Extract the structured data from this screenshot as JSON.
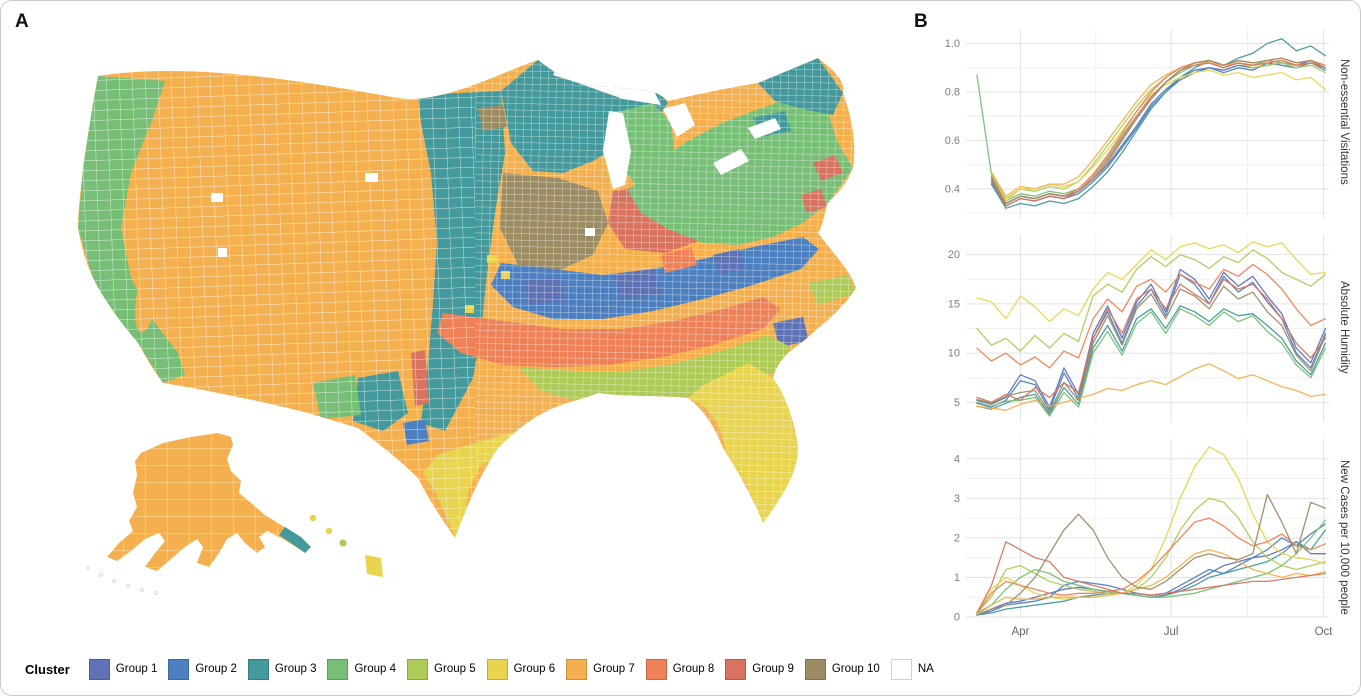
{
  "figure": {
    "panel_a_label": "A",
    "panel_b_label": "B"
  },
  "legend": {
    "title": "Cluster",
    "items": [
      {
        "label": "Group 1",
        "color": "#5e72b5"
      },
      {
        "label": "Group 2",
        "color": "#4c80c0"
      },
      {
        "label": "Group 3",
        "color": "#43999b"
      },
      {
        "label": "Group 4",
        "color": "#77bf77"
      },
      {
        "label": "Group 5",
        "color": "#aeca57"
      },
      {
        "label": "Group 6",
        "color": "#e8d44f"
      },
      {
        "label": "Group 7",
        "color": "#f4b04e"
      },
      {
        "label": "Group 8",
        "color": "#ee8158"
      },
      {
        "label": "Group 9",
        "color": "#d8735f"
      },
      {
        "label": "Group 10",
        "color": "#9c8c64"
      },
      {
        "label": "NA",
        "color": "#ffffff"
      }
    ]
  },
  "chart_data": [
    {
      "type": "line",
      "ylabel": "Non-essential Visitations",
      "ylim": [
        0.28,
        1.06
      ],
      "y_ticks": [
        0.4,
        0.6,
        0.8,
        1.0
      ],
      "x_ticks": [
        {
          "label": "Apr",
          "pos": 0.15
        },
        {
          "label": "Jul",
          "pos": 0.565
        },
        {
          "label": "Oct",
          "pos": 0.985
        }
      ],
      "x_minor": [
        0.3575,
        0.775
      ],
      "x_range": [
        0.03,
        0.99
      ],
      "show_x_labels": false,
      "series": [
        {
          "name": "Group 1",
          "color": "#5e72b5",
          "values": [
            null,
            0.44,
            0.34,
            0.37,
            0.36,
            0.38,
            0.37,
            0.39,
            0.44,
            0.5,
            0.58,
            0.66,
            0.75,
            0.81,
            0.86,
            0.89,
            0.9,
            0.89,
            0.91,
            0.9,
            0.91,
            0.92,
            0.91,
            0.93,
            0.9
          ]
        },
        {
          "name": "Group 2",
          "color": "#4c80c0",
          "values": [
            null,
            0.43,
            0.33,
            0.36,
            0.35,
            0.37,
            0.36,
            0.38,
            0.43,
            0.49,
            0.57,
            0.65,
            0.74,
            0.8,
            0.85,
            0.88,
            0.9,
            0.88,
            0.9,
            0.89,
            0.92,
            0.91,
            0.9,
            0.92,
            0.89
          ]
        },
        {
          "name": "Group 3",
          "color": "#43999b",
          "values": [
            null,
            0.42,
            0.32,
            0.34,
            0.33,
            0.35,
            0.34,
            0.36,
            0.41,
            0.47,
            0.55,
            0.64,
            0.73,
            0.8,
            0.86,
            0.9,
            0.93,
            0.91,
            0.94,
            0.96,
            1.0,
            1.02,
            0.97,
            0.99,
            0.95
          ]
        },
        {
          "name": "Group 4",
          "color": "#77bf77",
          "values": [
            0.87,
            0.46,
            0.35,
            0.38,
            0.37,
            0.39,
            0.38,
            0.4,
            0.46,
            0.53,
            0.62,
            0.7,
            0.78,
            0.84,
            0.88,
            0.91,
            0.92,
            0.9,
            0.92,
            0.91,
            0.93,
            0.92,
            0.91,
            0.92,
            0.9
          ]
        },
        {
          "name": "Group 5",
          "color": "#aeca57",
          "values": [
            null,
            0.46,
            0.36,
            0.4,
            0.39,
            0.41,
            0.4,
            0.43,
            0.5,
            0.58,
            0.66,
            0.74,
            0.81,
            0.86,
            0.9,
            0.92,
            0.93,
            0.91,
            0.92,
            0.9,
            0.91,
            0.92,
            0.9,
            0.91,
            0.88
          ]
        },
        {
          "name": "Group 6",
          "color": "#e8d44f",
          "values": [
            null,
            0.45,
            0.35,
            0.4,
            0.4,
            0.42,
            0.41,
            0.43,
            0.49,
            0.56,
            0.64,
            0.72,
            0.79,
            0.83,
            0.86,
            0.88,
            0.89,
            0.87,
            0.88,
            0.86,
            0.87,
            0.88,
            0.85,
            0.86,
            0.81
          ]
        },
        {
          "name": "Group 7",
          "color": "#f4b04e",
          "values": [
            null,
            0.47,
            0.37,
            0.41,
            0.4,
            0.42,
            0.42,
            0.45,
            0.52,
            0.6,
            0.68,
            0.76,
            0.83,
            0.87,
            0.9,
            0.92,
            0.92,
            0.91,
            0.92,
            0.91,
            0.92,
            0.93,
            0.91,
            0.92,
            0.9
          ]
        },
        {
          "name": "Group 8",
          "color": "#ee8158",
          "values": [
            null,
            0.45,
            0.34,
            0.37,
            0.36,
            0.38,
            0.37,
            0.4,
            0.46,
            0.54,
            0.63,
            0.72,
            0.8,
            0.86,
            0.9,
            0.92,
            0.93,
            0.91,
            0.93,
            0.92,
            0.93,
            0.94,
            0.92,
            0.93,
            0.91
          ]
        },
        {
          "name": "Group 9",
          "color": "#d8735f",
          "values": [
            null,
            0.44,
            0.33,
            0.36,
            0.35,
            0.37,
            0.36,
            0.39,
            0.45,
            0.52,
            0.61,
            0.7,
            0.78,
            0.84,
            0.89,
            0.91,
            0.92,
            0.9,
            0.92,
            0.91,
            0.92,
            0.93,
            0.91,
            0.92,
            0.9
          ]
        },
        {
          "name": "Group 10",
          "color": "#9c8c64",
          "values": [
            null,
            0.45,
            0.34,
            0.37,
            0.36,
            0.38,
            0.37,
            0.39,
            0.44,
            0.51,
            0.6,
            0.69,
            0.77,
            0.84,
            0.89,
            0.92,
            0.93,
            0.91,
            0.93,
            0.92,
            0.93,
            0.94,
            0.92,
            0.93,
            0.9
          ]
        }
      ]
    },
    {
      "type": "line",
      "ylabel": "Absolute Humidity",
      "ylim": [
        3,
        22
      ],
      "y_ticks": [
        5,
        10,
        15,
        20
      ],
      "x_ticks": [
        {
          "label": "Apr",
          "pos": 0.15
        },
        {
          "label": "Jul",
          "pos": 0.565
        },
        {
          "label": "Oct",
          "pos": 0.985
        }
      ],
      "x_minor": [
        0.3575,
        0.775
      ],
      "x_range": [
        0.03,
        0.99
      ],
      "show_x_labels": false,
      "series": [
        {
          "name": "Group 1",
          "color": "#5e72b5",
          "values": [
            5.2,
            4.8,
            5.5,
            7.8,
            7.2,
            4.5,
            8.5,
            5.8,
            12.0,
            14.8,
            11.5,
            15.2,
            17.0,
            14.2,
            18.5,
            17.5,
            15.5,
            18.2,
            16.8,
            17.8,
            15.8,
            14.0,
            10.5,
            9.0,
            12.5
          ]
        },
        {
          "name": "Group 2",
          "color": "#4c80c0",
          "values": [
            4.9,
            4.5,
            5.2,
            7.2,
            6.8,
            4.2,
            8.0,
            5.4,
            11.5,
            14.2,
            11.0,
            14.8,
            16.5,
            13.8,
            18.0,
            17.0,
            15.0,
            17.8,
            16.2,
            17.2,
            15.2,
            13.5,
            10.0,
            8.5,
            12.0
          ]
        },
        {
          "name": "Group 3",
          "color": "#43999b",
          "values": [
            4.6,
            4.3,
            4.9,
            5.5,
            5.8,
            3.8,
            6.5,
            4.8,
            10.5,
            12.8,
            10.2,
            13.5,
            14.5,
            12.5,
            14.8,
            14.2,
            13.2,
            14.5,
            13.8,
            14.0,
            12.8,
            11.5,
            9.2,
            7.8,
            11.0
          ]
        },
        {
          "name": "Group 4",
          "color": "#77bf77",
          "values": [
            5.0,
            4.6,
            5.1,
            5.2,
            5.5,
            3.6,
            6.0,
            4.5,
            10.0,
            12.2,
            9.8,
            13.0,
            14.2,
            12.0,
            14.5,
            13.8,
            12.8,
            14.2,
            13.2,
            13.8,
            12.2,
            11.0,
            8.8,
            7.5,
            10.5
          ]
        },
        {
          "name": "Group 5",
          "color": "#aeca57",
          "values": [
            12.5,
            10.8,
            11.5,
            10.2,
            11.8,
            10.5,
            12.0,
            11.2,
            15.8,
            17.0,
            16.2,
            18.5,
            19.8,
            18.8,
            20.0,
            19.5,
            18.6,
            19.8,
            19.2,
            20.5,
            19.6,
            18.2,
            17.5,
            16.8,
            18.0
          ]
        },
        {
          "name": "Group 6",
          "color": "#e8d44f",
          "values": [
            15.6,
            15.2,
            13.5,
            15.8,
            14.7,
            13.2,
            14.5,
            13.8,
            16.5,
            18.2,
            17.5,
            19.0,
            20.5,
            19.5,
            20.8,
            21.2,
            20.6,
            21.0,
            20.2,
            21.3,
            20.8,
            21.2,
            19.5,
            18.0,
            18.2
          ]
        },
        {
          "name": "Group 7",
          "color": "#f4b04e",
          "values": [
            4.6,
            4.4,
            4.2,
            4.8,
            5.2,
            4.6,
            5.0,
            5.4,
            5.8,
            6.4,
            6.2,
            6.8,
            7.2,
            6.8,
            7.6,
            8.4,
            8.9,
            8.2,
            7.4,
            7.8,
            7.2,
            6.6,
            6.2,
            5.6,
            5.8
          ]
        },
        {
          "name": "Group 8",
          "color": "#ee8158",
          "values": [
            10.5,
            9.2,
            10.0,
            8.8,
            9.6,
            8.5,
            10.2,
            9.5,
            13.5,
            15.5,
            14.2,
            16.8,
            17.5,
            16.2,
            18.0,
            17.2,
            16.5,
            18.5,
            17.8,
            19.0,
            18.0,
            16.5,
            14.5,
            12.8,
            13.5
          ]
        },
        {
          "name": "Group 9",
          "color": "#d8735f",
          "values": [
            5.5,
            5.0,
            5.8,
            5.2,
            6.5,
            5.5,
            7.0,
            6.0,
            11.5,
            14.5,
            12.0,
            15.5,
            16.5,
            14.5,
            17.0,
            16.0,
            15.0,
            17.5,
            16.5,
            17.0,
            15.5,
            13.5,
            11.0,
            9.5,
            11.5
          ]
        },
        {
          "name": "Group 10",
          "color": "#9c8c64",
          "values": [
            5.3,
            4.9,
            5.6,
            6.0,
            6.2,
            4.0,
            7.0,
            5.2,
            11.0,
            13.8,
            10.8,
            14.5,
            16.0,
            13.5,
            16.5,
            15.8,
            14.5,
            16.8,
            15.5,
            16.2,
            14.2,
            12.8,
            9.8,
            8.2,
            11.8
          ]
        }
      ]
    },
    {
      "type": "line",
      "ylabel": "New Cases per 10,000 people",
      "ylim": [
        0,
        4.5
      ],
      "y_ticks": [
        0,
        1,
        2,
        3,
        4
      ],
      "x_ticks": [
        {
          "label": "Apr",
          "pos": 0.15
        },
        {
          "label": "Jul",
          "pos": 0.565
        },
        {
          "label": "Oct",
          "pos": 0.985
        }
      ],
      "x_minor": [
        0.3575,
        0.775
      ],
      "x_range": [
        0.03,
        0.99
      ],
      "show_x_labels": true,
      "series": [
        {
          "name": "Group 1",
          "color": "#5e72b5",
          "values": [
            0.05,
            0.2,
            0.35,
            0.4,
            0.5,
            0.6,
            0.7,
            0.75,
            0.7,
            0.65,
            0.6,
            0.55,
            0.5,
            0.55,
            0.7,
            0.9,
            1.1,
            1.3,
            1.4,
            1.5,
            1.55,
            1.7,
            1.9,
            1.6,
            1.6
          ]
        },
        {
          "name": "Group 2",
          "color": "#4c80c0",
          "values": [
            0.05,
            0.15,
            0.3,
            0.35,
            0.4,
            0.5,
            0.8,
            0.9,
            0.85,
            0.8,
            0.7,
            0.6,
            0.55,
            0.6,
            0.8,
            1.0,
            1.2,
            1.1,
            1.3,
            1.5,
            1.7,
            2.0,
            1.8,
            2.1,
            2.35
          ]
        },
        {
          "name": "Group 3",
          "color": "#43999b",
          "values": [
            0.05,
            0.1,
            0.2,
            0.25,
            0.3,
            0.35,
            0.4,
            0.5,
            0.55,
            0.6,
            0.6,
            0.55,
            0.5,
            0.55,
            0.65,
            0.8,
            1.0,
            1.1,
            1.2,
            1.3,
            1.4,
            1.6,
            1.9,
            1.7,
            2.2
          ]
        },
        {
          "name": "Group 4",
          "color": "#77bf77",
          "values": [
            0.1,
            0.3,
            0.7,
            1.0,
            1.2,
            1.1,
            0.9,
            0.8,
            0.7,
            0.65,
            0.6,
            0.55,
            0.5,
            0.5,
            0.55,
            0.6,
            0.7,
            0.8,
            0.9,
            1.0,
            1.1,
            1.3,
            1.6,
            2.0,
            2.45
          ]
        },
        {
          "name": "Group 5",
          "color": "#aeca57",
          "values": [
            0.1,
            0.5,
            1.2,
            1.3,
            1.1,
            0.9,
            0.8,
            0.7,
            0.65,
            0.6,
            0.6,
            0.7,
            1.0,
            1.5,
            2.2,
            2.7,
            3.0,
            2.9,
            2.5,
            1.9,
            1.5,
            1.3,
            1.2,
            1.3,
            1.4
          ]
        },
        {
          "name": "Group 6",
          "color": "#e8d44f",
          "values": [
            0.1,
            0.7,
            1.0,
            0.8,
            0.6,
            0.5,
            0.45,
            0.5,
            0.5,
            0.55,
            0.6,
            0.8,
            1.2,
            2.0,
            3.0,
            3.8,
            4.3,
            4.1,
            3.5,
            2.6,
            1.9,
            1.6,
            1.5,
            1.45,
            1.35
          ]
        },
        {
          "name": "Group 7",
          "color": "#f4b04e",
          "values": [
            0.05,
            0.3,
            0.5,
            0.45,
            0.45,
            0.5,
            0.5,
            0.5,
            0.5,
            0.55,
            0.6,
            0.7,
            0.8,
            1.0,
            1.3,
            1.6,
            1.7,
            1.6,
            1.4,
            1.2,
            1.1,
            1.0,
            1.1,
            1.05,
            1.15
          ]
        },
        {
          "name": "Group 8",
          "color": "#ee8158",
          "values": [
            0.1,
            0.6,
            0.9,
            0.8,
            0.7,
            0.6,
            0.55,
            0.6,
            0.6,
            0.65,
            0.7,
            0.9,
            1.2,
            1.6,
            2.0,
            2.4,
            2.5,
            2.3,
            2.0,
            1.8,
            1.9,
            2.1,
            1.8,
            1.7,
            1.85
          ]
        },
        {
          "name": "Group 9",
          "color": "#d8735f",
          "values": [
            0.1,
            0.8,
            1.9,
            1.7,
            1.5,
            1.4,
            1.0,
            0.9,
            0.8,
            0.7,
            0.6,
            0.6,
            0.55,
            0.6,
            0.65,
            0.7,
            0.75,
            0.8,
            0.85,
            0.9,
            0.9,
            0.95,
            1.0,
            1.05,
            1.1
          ]
        },
        {
          "name": "Group 10",
          "color": "#9c8c64",
          "values": [
            0.05,
            0.2,
            0.3,
            0.6,
            1.0,
            1.6,
            2.2,
            2.6,
            2.2,
            1.5,
            1.0,
            0.75,
            0.7,
            0.9,
            1.2,
            1.5,
            1.6,
            1.5,
            1.45,
            1.6,
            3.1,
            2.4,
            1.6,
            2.9,
            2.75
          ]
        }
      ]
    }
  ]
}
